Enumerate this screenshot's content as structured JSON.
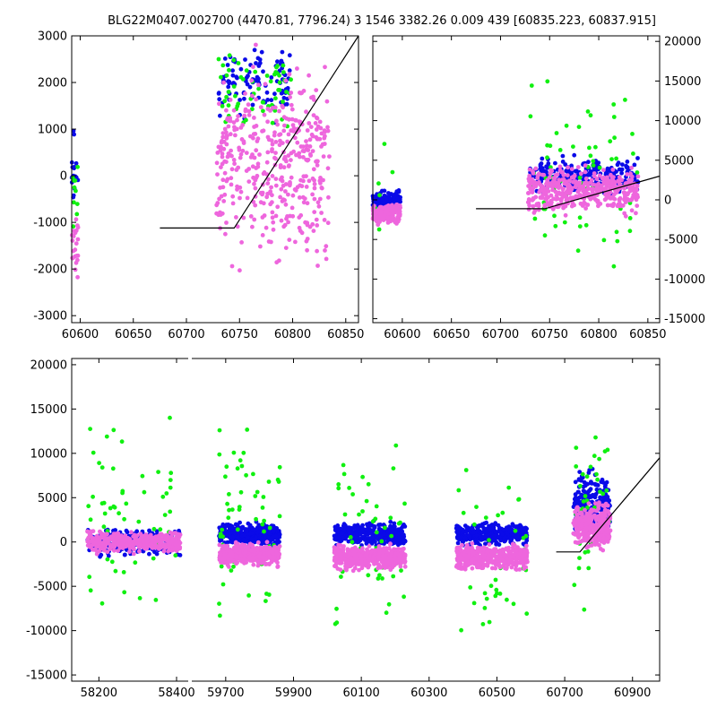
{
  "title": "BLG22M0407.002700 (4470.81, 7796.24)    3 1546 3382.26 0.009 439 [60835.223, 60837.915]",
  "colors": {
    "blue": "#0a0ae8",
    "green": "#10f010",
    "pink": "#ee66dd",
    "line": "#000000",
    "axis": "#000000"
  },
  "chart_data": [
    {
      "name": "top-left",
      "type": "scatter",
      "xlim": [
        60592,
        60862
      ],
      "ylim": [
        -3150,
        3000
      ],
      "xticks": [
        60600,
        60650,
        60700,
        60750,
        60800,
        60850
      ],
      "yticks": [
        -3000,
        -2000,
        -1000,
        0,
        1000,
        2000,
        3000
      ],
      "ytick_side": "left",
      "model": {
        "x": [
          60675,
          60745,
          60862
        ],
        "y": [
          -1120,
          -1120,
          3000
        ]
      },
      "clusters": [
        {
          "series": "blue",
          "x": [
            60592,
            60598
          ],
          "y": [
            -1000,
            1300
          ],
          "n": 18,
          "seed": 11
        },
        {
          "series": "green",
          "x": [
            60592,
            60598
          ],
          "y": [
            -1500,
            900
          ],
          "n": 10,
          "seed": 12
        },
        {
          "series": "pink",
          "x": [
            60592,
            60598
          ],
          "y": [
            -2500,
            -500
          ],
          "n": 22,
          "seed": 13
        },
        {
          "series": "blue",
          "x": [
            60730,
            60800
          ],
          "y": [
            1000,
            3000
          ],
          "n": 110,
          "seed": 14
        },
        {
          "series": "green",
          "x": [
            60730,
            60800
          ],
          "y": [
            700,
            3000
          ],
          "n": 60,
          "seed": 15
        },
        {
          "series": "pink",
          "x": [
            60728,
            60835
          ],
          "y": [
            -2500,
            3000
          ],
          "n": 420,
          "seed": 16
        }
      ]
    },
    {
      "name": "top-right",
      "type": "scatter",
      "xlim": [
        60570,
        60862
      ],
      "ylim": [
        -15500,
        20700
      ],
      "xticks": [
        60600,
        60650,
        60700,
        60750,
        60800,
        60850
      ],
      "yticks": [
        -15000,
        -10000,
        -5000,
        0,
        5000,
        10000,
        15000,
        20000
      ],
      "ytick_side": "right",
      "model": {
        "x": [
          60675,
          60745,
          60862
        ],
        "y": [
          -1120,
          -1120,
          3000
        ]
      },
      "clusters": [
        {
          "series": "blue",
          "x": [
            60570,
            60598
          ],
          "y": [
            -1500,
            1500
          ],
          "n": 120,
          "seed": 21
        },
        {
          "series": "pink",
          "x": [
            60570,
            60598
          ],
          "y": [
            -3500,
            0
          ],
          "n": 160,
          "seed": 22
        },
        {
          "series": "green",
          "x": [
            60570,
            60598
          ],
          "y": [
            -12000,
            14000
          ],
          "n": 6,
          "seed": 23
        },
        {
          "series": "blue",
          "x": [
            60730,
            60840
          ],
          "y": [
            0,
            6000
          ],
          "n": 260,
          "seed": 24
        },
        {
          "series": "green",
          "x": [
            60730,
            60840
          ],
          "y": [
            -12000,
            17500
          ],
          "n": 70,
          "seed": 25
        },
        {
          "series": "pink",
          "x": [
            60728,
            60840
          ],
          "y": [
            -2500,
            5000
          ],
          "n": 420,
          "seed": 26
        }
      ]
    },
    {
      "name": "bottom",
      "type": "scatter",
      "broken_x_axis": true,
      "ylim": [
        -15700,
        20700
      ],
      "yticks": [
        -15000,
        -10000,
        -5000,
        0,
        5000,
        10000,
        15000,
        20000
      ],
      "ytick_side": "left",
      "segments": [
        {
          "xlim": [
            58130,
            58430
          ],
          "xticks": [
            58200,
            58400
          ]
        },
        {
          "xlim": [
            59600,
            60980
          ],
          "xticks": [
            59700,
            59900,
            60100,
            60300,
            60500,
            60700,
            60900
          ]
        }
      ],
      "model": {
        "x": [
          60675,
          60745,
          60980
        ],
        "y": [
          -1120,
          -1120,
          9500
        ]
      },
      "clusters": [
        {
          "series": "blue",
          "x": [
            58170,
            58410
          ],
          "y": [
            -2000,
            2000
          ],
          "n": 220,
          "seed": 31
        },
        {
          "series": "pink",
          "x": [
            58170,
            58410
          ],
          "y": [
            -1500,
            1500
          ],
          "n": 400,
          "seed": 32
        },
        {
          "series": "green",
          "x": [
            58170,
            58410
          ],
          "y": [
            -13000,
            19000
          ],
          "n": 60,
          "seed": 33
        },
        {
          "series": "blue",
          "x": [
            59680,
            59860
          ],
          "y": [
            -800,
            2500
          ],
          "n": 320,
          "seed": 34
        },
        {
          "series": "pink",
          "x": [
            59680,
            59860
          ],
          "y": [
            -3000,
            200
          ],
          "n": 420,
          "seed": 35
        },
        {
          "series": "green",
          "x": [
            59680,
            59860
          ],
          "y": [
            -13000,
            19000
          ],
          "n": 60,
          "seed": 36
        },
        {
          "series": "blue",
          "x": [
            60020,
            60230
          ],
          "y": [
            -800,
            2500
          ],
          "n": 360,
          "seed": 37
        },
        {
          "series": "pink",
          "x": [
            60020,
            60230
          ],
          "y": [
            -3500,
            0
          ],
          "n": 460,
          "seed": 38
        },
        {
          "series": "green",
          "x": [
            60020,
            60230
          ],
          "y": [
            -14500,
            15500
          ],
          "n": 50,
          "seed": 39
        },
        {
          "series": "blue",
          "x": [
            60380,
            60590
          ],
          "y": [
            -800,
            2500
          ],
          "n": 340,
          "seed": 40
        },
        {
          "series": "pink",
          "x": [
            60380,
            60590
          ],
          "y": [
            -3500,
            0
          ],
          "n": 460,
          "seed": 41
        },
        {
          "series": "green",
          "x": [
            60380,
            60590
          ],
          "y": [
            -14000,
            10000
          ],
          "n": 45,
          "seed": 42
        },
        {
          "series": "blue",
          "x": [
            60725,
            60835
          ],
          "y": [
            -500,
            9000
          ],
          "n": 220,
          "seed": 43
        },
        {
          "series": "pink",
          "x": [
            60725,
            60835
          ],
          "y": [
            -1500,
            5000
          ],
          "n": 300,
          "seed": 44
        },
        {
          "series": "green",
          "x": [
            60725,
            60835
          ],
          "y": [
            -9500,
            17500
          ],
          "n": 40,
          "seed": 45
        }
      ]
    }
  ]
}
